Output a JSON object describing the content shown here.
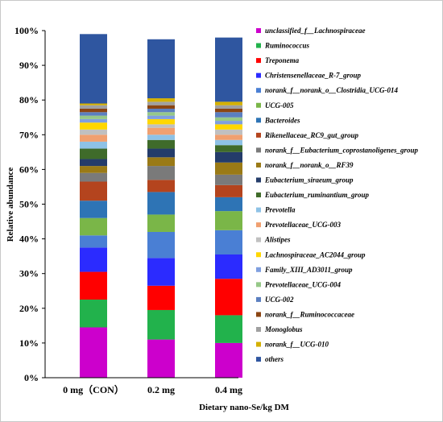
{
  "chart_data": {
    "type": "bar",
    "stacked": true,
    "title": "",
    "xlabel": "Dietary nano-Se/kg DM",
    "ylabel": "Relative abundance",
    "ylim": [
      0,
      100
    ],
    "y_ticks": [
      "0%",
      "10%",
      "20%",
      "30%",
      "40%",
      "50%",
      "60%",
      "70%",
      "80%",
      "90%",
      "100%"
    ],
    "categories": [
      "0 mg（CON）",
      "0.2 mg",
      "0.4 mg"
    ],
    "legend_position": "right",
    "grid": false,
    "series": [
      {
        "name": "unclassified_f__Lachnospiraceae",
        "color": "#cc00cc",
        "values": [
          14.5,
          11.0,
          10.0
        ]
      },
      {
        "name": "Ruminococcus",
        "color": "#22b24c",
        "values": [
          8.0,
          8.5,
          8.0
        ]
      },
      {
        "name": "Treponema",
        "color": "#ff0000",
        "values": [
          8.0,
          7.0,
          10.5
        ]
      },
      {
        "name": "Christensenellaceae_R-7_group",
        "color": "#2b2bff",
        "values": [
          7.0,
          8.0,
          7.0
        ]
      },
      {
        "name": "norank_f__norank_o__Clostridia_UCG-014",
        "color": "#4a7fd4",
        "values": [
          3.5,
          7.5,
          7.0
        ]
      },
      {
        "name": "UCG-005",
        "color": "#7ab648",
        "values": [
          5.0,
          5.0,
          5.5
        ]
      },
      {
        "name": "Bacteroides",
        "color": "#2e74b5",
        "values": [
          5.0,
          6.5,
          4.0
        ]
      },
      {
        "name": "Rikenellaceae_RC9_gut_group",
        "color": "#b4441e",
        "values": [
          5.5,
          3.5,
          3.5
        ]
      },
      {
        "name": "norank_f__Eubacterium_coprostanoligenes_group",
        "color": "#7a7a7a",
        "values": [
          2.5,
          4.0,
          3.0
        ]
      },
      {
        "name": "norank_f__norank_o__RF39",
        "color": "#9a7a16",
        "values": [
          2.0,
          2.5,
          3.5
        ]
      },
      {
        "name": "Eubacterium_siraeum_group",
        "color": "#243c6a",
        "values": [
          2.0,
          2.5,
          3.0
        ]
      },
      {
        "name": "Eubacterium_ruminantium_group",
        "color": "#3f6b2a",
        "values": [
          3.0,
          2.5,
          2.0
        ]
      },
      {
        "name": "Prevotella",
        "color": "#8ec2e6",
        "values": [
          2.0,
          1.5,
          1.5
        ]
      },
      {
        "name": "Prevotellaceae_UCG-003",
        "color": "#f0a070",
        "values": [
          2.0,
          2.0,
          1.5
        ]
      },
      {
        "name": "Alistipes",
        "color": "#c0c0c0",
        "values": [
          1.5,
          1.0,
          1.5
        ]
      },
      {
        "name": "Lachnospiraceae_AC2044_group",
        "color": "#ffd700",
        "values": [
          2.0,
          1.5,
          1.5
        ]
      },
      {
        "name": "Family_XIII_AD3011_group",
        "color": "#7f9fdf",
        "values": [
          1.0,
          1.0,
          1.0
        ]
      },
      {
        "name": "Prevotellaceae_UCG-004",
        "color": "#96c888",
        "values": [
          1.0,
          1.0,
          1.0
        ]
      },
      {
        "name": "UCG-002",
        "color": "#5b7fc0",
        "values": [
          1.0,
          1.0,
          1.5
        ]
      },
      {
        "name": "norank_f__Ruminococcaceae",
        "color": "#8b4513",
        "values": [
          1.0,
          1.0,
          1.0
        ]
      },
      {
        "name": "Monoglobus",
        "color": "#a0a0a0",
        "values": [
          1.0,
          1.0,
          1.0
        ]
      },
      {
        "name": "norank_f__UCG-010",
        "color": "#d4b000",
        "values": [
          0.5,
          1.0,
          1.0
        ]
      },
      {
        "name": "others",
        "color": "#2f56a0",
        "values": [
          20.0,
          17.0,
          18.5
        ]
      }
    ]
  }
}
